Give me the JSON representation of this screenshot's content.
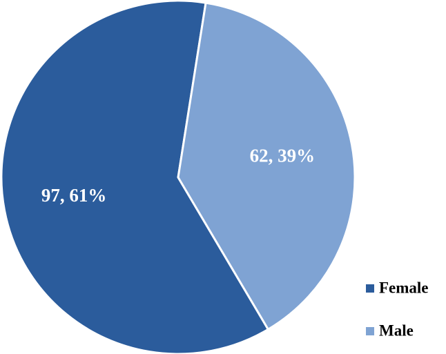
{
  "chart_data": {
    "type": "pie",
    "categories": [
      "Female",
      "Male"
    ],
    "values": [
      97,
      62
    ],
    "value_labels": [
      "97, 61%",
      "62, 39%"
    ],
    "colors": [
      "#2b5c9c",
      "#7fa3d3"
    ],
    "legend": "bottom-right"
  }
}
